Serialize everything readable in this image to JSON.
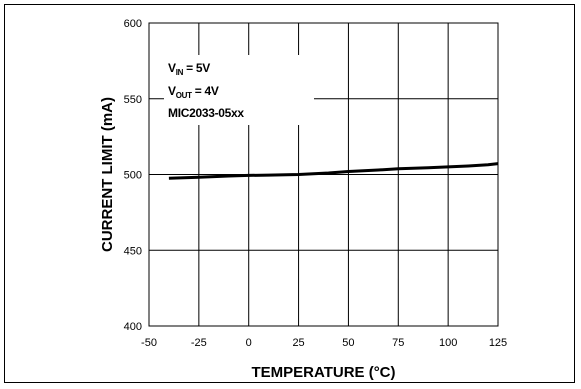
{
  "chart_data": {
    "type": "line",
    "xlabel": "TEMPERATURE (°C)",
    "ylabel": "CURRENT LIMIT (mA)",
    "xlim": [
      -50,
      125
    ],
    "ylim": [
      400,
      600
    ],
    "xticks": [
      -50,
      -25,
      0,
      25,
      50,
      75,
      100,
      125
    ],
    "yticks": [
      400,
      450,
      500,
      550,
      600
    ],
    "grid": true,
    "series": [
      {
        "x": [
          -40,
          -25,
          -10,
          0,
          10,
          25,
          40,
          50,
          65,
          75,
          90,
          100,
          110,
          120,
          125
        ],
        "y": [
          497.5,
          498.2,
          499.0,
          499.4,
          499.6,
          500.0,
          501.0,
          502.0,
          503.0,
          503.8,
          504.4,
          505.0,
          505.6,
          506.5,
          507.2
        ],
        "color": "#000000"
      }
    ],
    "annotation": {
      "line1_main": "V",
      "line1_sub": "IN",
      "line1_rest": " = 5V",
      "line2_main": "V",
      "line2_sub": "OUT",
      "line2_rest": " = 4V",
      "line3": "MIC2033-05xx"
    }
  }
}
